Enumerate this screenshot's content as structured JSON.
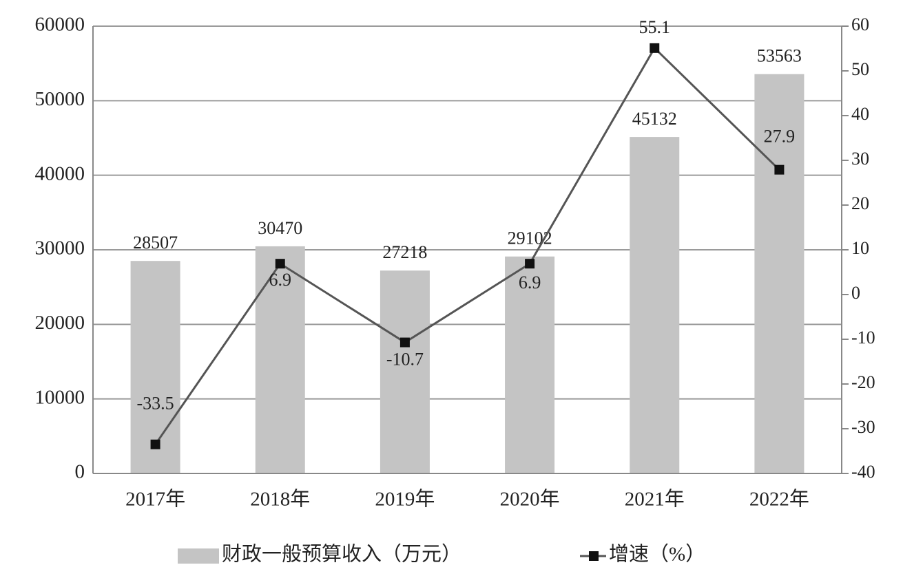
{
  "chart_data": {
    "type": "bar",
    "categories": [
      "2017年",
      "2018年",
      "2019年",
      "2020年",
      "2021年",
      "2022年"
    ],
    "series": [
      {
        "name": "财政一般预算收入（万元）",
        "type": "bar",
        "color": "#c4c4c4",
        "values": [
          28507,
          30470,
          27218,
          29102,
          45132,
          53563
        ]
      },
      {
        "name": "增速（%）",
        "type": "line",
        "axis": "y2",
        "color": "#555555",
        "marker_color": "#111111",
        "values": [
          -33.5,
          6.9,
          -10.7,
          6.9,
          55.1,
          27.9
        ]
      }
    ],
    "ylim": [
      0,
      60000
    ],
    "yticks": [
      0,
      10000,
      20000,
      30000,
      40000,
      50000,
      60000
    ],
    "y2lim": [
      -40,
      60
    ],
    "y2ticks": [
      -40,
      -30,
      -20,
      -10,
      0,
      10,
      20,
      30,
      40,
      50,
      60
    ],
    "grid": true,
    "legend": "bottom"
  }
}
